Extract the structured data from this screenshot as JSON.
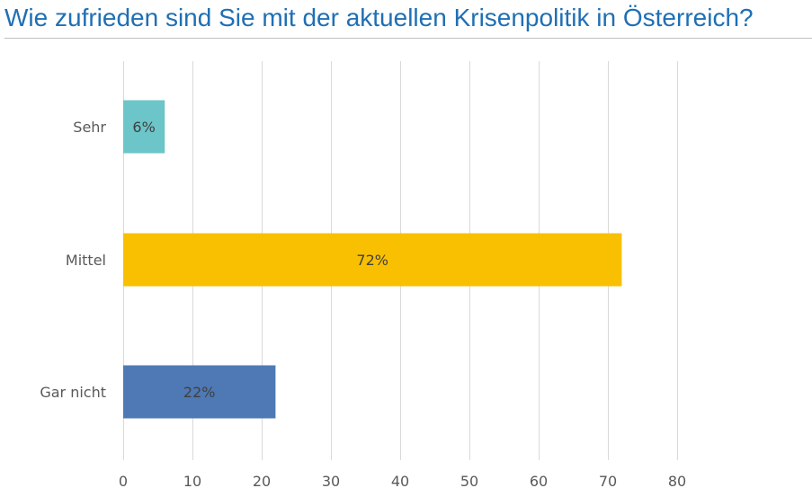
{
  "title": "Wie zufrieden sind Sie mit der aktuellen Krisenpolitik in Österreich?",
  "colors": {
    "title": "#1f6fb4",
    "grid": "#d9d9d9",
    "label": "#595959"
  },
  "chart_data": {
    "type": "bar",
    "orientation": "horizontal",
    "categories": [
      "Sehr",
      "Mittel",
      "Gar nicht"
    ],
    "values": [
      6,
      72,
      22
    ],
    "data_labels": [
      "6%",
      "72%",
      "22%"
    ],
    "colors": [
      "#6cc5c9",
      "#f8c000",
      "#4e79b4"
    ],
    "xlim": [
      0,
      80
    ],
    "xticks": [
      0,
      10,
      20,
      30,
      40,
      50,
      60,
      70,
      80
    ],
    "grid": true,
    "legend": "none",
    "xlabel": "",
    "ylabel": ""
  }
}
